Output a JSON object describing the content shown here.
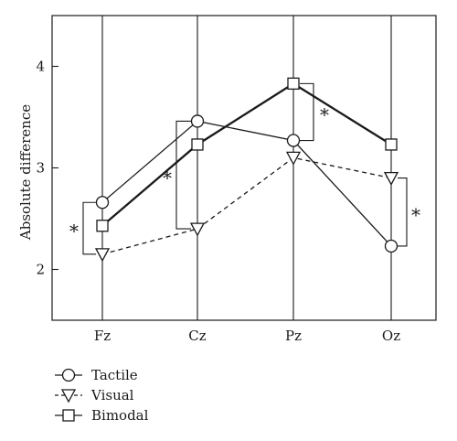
{
  "chart_data": {
    "type": "line",
    "categories": [
      "Fz",
      "Cz",
      "Pz",
      "Oz"
    ],
    "ylabel": "Absolute difference",
    "xlabel": "",
    "ylim": [
      1.5,
      4.5
    ],
    "yticks": [
      "2",
      "3",
      "4"
    ],
    "grid": "vertical lines at categories",
    "legend_position": "bottom-left, below plot",
    "series": [
      {
        "name": "Tactile",
        "marker": "circle",
        "linestyle": "solid-thin",
        "values": [
          2.66,
          3.46,
          3.27,
          2.23
        ]
      },
      {
        "name": "Visual",
        "marker": "triangle-down",
        "linestyle": "dashed",
        "values": [
          2.15,
          2.4,
          3.1,
          2.9
        ]
      },
      {
        "name": "Bimodal",
        "marker": "square",
        "linestyle": "solid-thick",
        "values": [
          2.43,
          3.23,
          3.83,
          3.23
        ]
      }
    ],
    "significance": [
      {
        "category": "Fz",
        "from": 2.66,
        "to": 2.15,
        "label": "*"
      },
      {
        "category": "Cz",
        "from": 3.46,
        "to": 2.4,
        "label": "*"
      },
      {
        "category": "Pz",
        "from": 3.83,
        "to": 3.27,
        "label": "*"
      },
      {
        "category": "Oz",
        "from": 2.9,
        "to": 2.23,
        "label": "*"
      }
    ]
  }
}
